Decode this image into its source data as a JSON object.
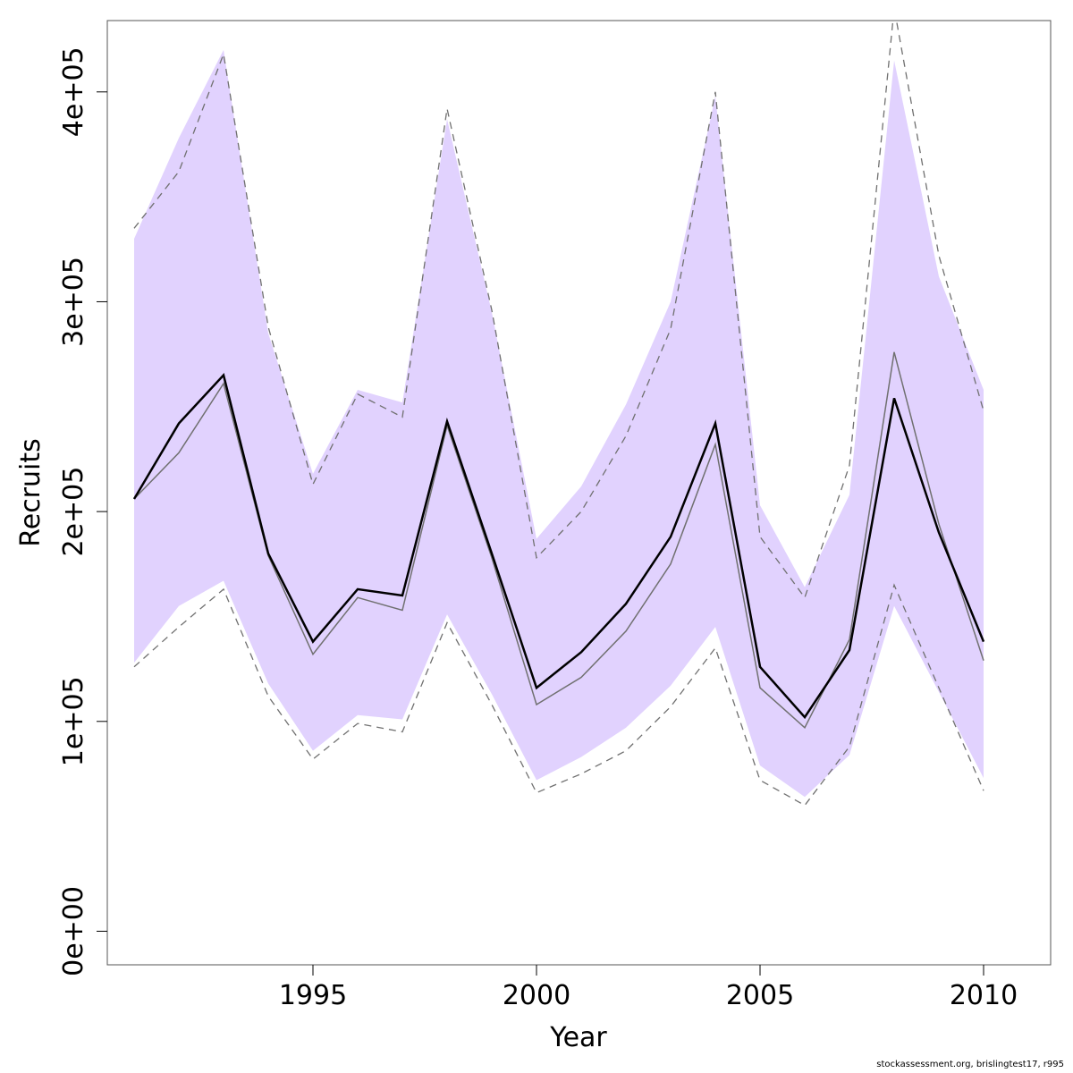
{
  "chart_data": {
    "type": "line",
    "xlabel": "Year",
    "ylabel": "Recruits",
    "xlim": [
      1990.4,
      2011.5
    ],
    "ylim": [
      -16000,
      434000
    ],
    "x_ticks": [
      1995,
      2000,
      2005,
      2010
    ],
    "x_tick_labels": [
      "1995",
      "2000",
      "2005",
      "2010"
    ],
    "y_ticks": [
      0,
      100000,
      200000,
      300000,
      400000
    ],
    "y_tick_labels": [
      "0e+00",
      "1e+05",
      "2e+05",
      "3e+05",
      "4e+05"
    ],
    "grid": false,
    "legend": "none",
    "x": [
      1991,
      1992,
      1993,
      1994,
      1995,
      1996,
      1997,
      1998,
      1999,
      2000,
      2001,
      2002,
      2003,
      2004,
      2005,
      2006,
      2007,
      2008,
      2009,
      2010
    ],
    "band": {
      "color": "#e1d2fe",
      "upper": [
        330000,
        378000,
        420000,
        285000,
        218000,
        258000,
        252000,
        387000,
        295000,
        187000,
        212000,
        251000,
        300000,
        398000,
        203000,
        164000,
        208000,
        415000,
        312000,
        258000
      ],
      "lower": [
        128000,
        155000,
        167000,
        118000,
        86000,
        103000,
        101000,
        151000,
        113000,
        72000,
        83000,
        97000,
        117000,
        145000,
        79000,
        64000,
        84000,
        155000,
        114000,
        73000
      ]
    },
    "series": [
      {
        "style": "solid-thick",
        "color": "#000000",
        "values": [
          206000,
          242000,
          265000,
          180000,
          138000,
          163000,
          160000,
          243000,
          180000,
          116000,
          133000,
          156000,
          188000,
          242000,
          126000,
          102000,
          134000,
          254000,
          190000,
          138000
        ]
      },
      {
        "style": "solid-thin",
        "color": "#707070",
        "values": [
          206000,
          228000,
          261000,
          179000,
          132000,
          159000,
          153000,
          241000,
          178000,
          108000,
          121000,
          143000,
          175000,
          232000,
          116000,
          97000,
          139000,
          276000,
          194000,
          129000
        ]
      },
      {
        "style": "dashed-upper",
        "color": "#707070",
        "values": [
          335000,
          362000,
          418000,
          288000,
          213000,
          256000,
          245000,
          392000,
          296000,
          178000,
          200000,
          236000,
          287000,
          400000,
          188000,
          159000,
          222000,
          440000,
          322000,
          248000
        ]
      },
      {
        "style": "dashed-lower",
        "color": "#707070",
        "values": [
          126000,
          145000,
          163000,
          112000,
          82000,
          99000,
          95000,
          147000,
          108000,
          66000,
          75000,
          86000,
          107000,
          135000,
          72000,
          60000,
          88000,
          165000,
          116000,
          67000
        ]
      }
    ]
  },
  "footer": "stockassessment.org, brislingtest17, r995"
}
